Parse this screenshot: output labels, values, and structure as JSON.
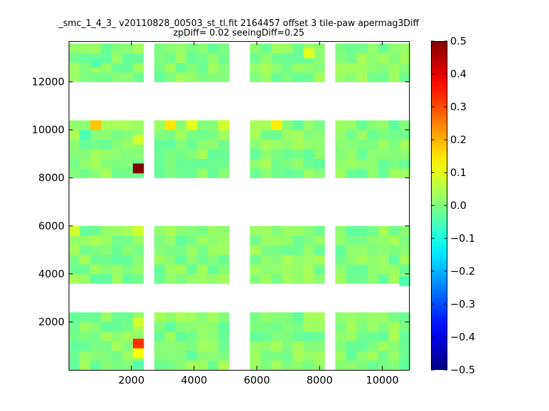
{
  "chart_data": {
    "type": "heatmap",
    "title": "_smc_1_4_3_ v20110828_00503_st_tl.fit 2164457 offset 3 tile-paw apermag3Diff",
    "subtitle": "zpDiff= 0.02 seeingDiff=0.25",
    "xlim": [
      0,
      10850
    ],
    "ylim": [
      0,
      13700
    ],
    "x_ticks": [
      2000,
      4000,
      6000,
      8000,
      10000
    ],
    "y_ticks": [
      2000,
      4000,
      6000,
      8000,
      10000,
      12000
    ],
    "colorbar": {
      "range": [
        -0.5,
        0.5
      ],
      "colormap": "jet",
      "ticks": [
        -0.5,
        -0.4,
        -0.3,
        -0.2,
        -0.1,
        0.0,
        0.1,
        0.2,
        0.3,
        0.4,
        0.5
      ],
      "tick_labels": [
        "−0.5",
        "−0.4",
        "−0.3",
        "−0.2",
        "−0.1",
        "0.0",
        "0.1",
        "0.2",
        "0.3",
        "0.4",
        "0.5"
      ]
    },
    "cell_size": [
      340,
      400
    ],
    "x_columns": [
      180,
      520,
      860,
      1200,
      1540,
      1880,
      2220,
      2900,
      3240,
      3580,
      3920,
      4260,
      4600,
      4940,
      5950,
      6290,
      6630,
      6970,
      7310,
      7650,
      7990,
      8670,
      9010,
      9350,
      9690,
      10030,
      10370,
      10710
    ],
    "y_rows": [
      200,
      600,
      1000,
      1400,
      1800,
      2200,
      3800,
      4200,
      4600,
      5000,
      5400,
      5800,
      8200,
      8600,
      9000,
      9400,
      9800,
      10200,
      12200,
      12600,
      13000,
      13400
    ],
    "notable_cells": [
      {
        "x": 2220,
        "y": 8400,
        "value": 0.5
      },
      {
        "x": 2220,
        "y": 1100,
        "value": 0.33
      },
      {
        "x": 860,
        "y": 10200,
        "value": 0.18
      },
      {
        "x": 3240,
        "y": 10200,
        "value": 0.15
      },
      {
        "x": 6630,
        "y": 10200,
        "value": 0.14
      },
      {
        "x": 2220,
        "y": 700,
        "value": 0.12
      },
      {
        "x": 7650,
        "y": 13200,
        "value": 0.1
      },
      {
        "x": 3920,
        "y": 10200,
        "value": 0.1
      },
      {
        "x": 4940,
        "y": 10200,
        "value": 0.08
      },
      {
        "x": 180,
        "y": 5800,
        "value": 0.08
      },
      {
        "x": 2220,
        "y": 5800,
        "value": 0.08
      },
      {
        "x": 2220,
        "y": 2000,
        "value": 0.08
      },
      {
        "x": 2220,
        "y": 9600,
        "value": 0.08
      },
      {
        "x": 10710,
        "y": 3700,
        "value": -0.05
      },
      {
        "x": 520,
        "y": 9800,
        "value": -0.05
      },
      {
        "x": 860,
        "y": 12800,
        "value": -0.04
      },
      {
        "x": 2220,
        "y": 200,
        "value": -0.04
      }
    ],
    "grid": false,
    "legend": "colorbar-right"
  }
}
